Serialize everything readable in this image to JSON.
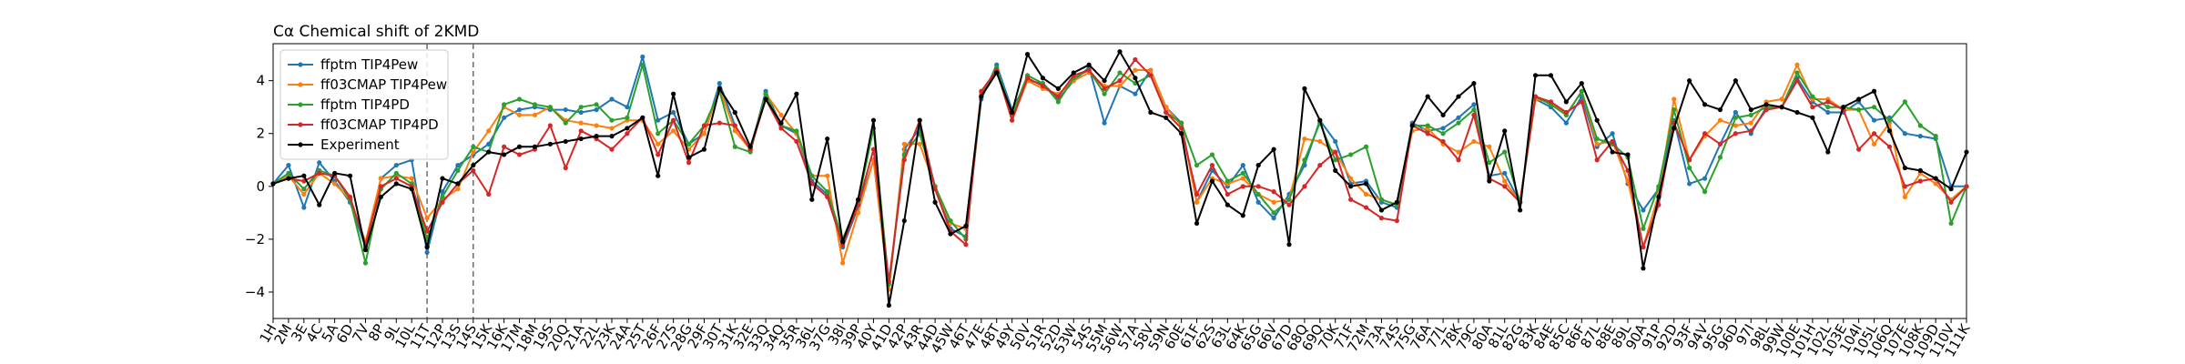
{
  "chart_data": {
    "type": "line",
    "title": "Cα Chemical shift of 2KMD",
    "xlabel": "",
    "ylabel": "",
    "ylim": [
      -5.0,
      5.4
    ],
    "yticks": [
      -4,
      -2,
      0,
      2,
      4
    ],
    "grid": false,
    "legend_position": "top-left",
    "categories": [
      "1H",
      "2M",
      "3E",
      "4C",
      "5A",
      "6D",
      "7V",
      "8P",
      "9L",
      "10L",
      "11T",
      "12P",
      "13S",
      "14S",
      "15K",
      "16K",
      "17M",
      "18M",
      "19S",
      "20Q",
      "21A",
      "22L",
      "23K",
      "24A",
      "25T",
      "26F",
      "27S",
      "28G",
      "29F",
      "30T",
      "31K",
      "32E",
      "33Q",
      "34Q",
      "35R",
      "36L",
      "37G",
      "38I",
      "39P",
      "40Y",
      "41D",
      "42P",
      "43R",
      "44D",
      "45W",
      "46T",
      "47E",
      "48T",
      "49Y",
      "50V",
      "51R",
      "52D",
      "53W",
      "54S",
      "55M",
      "56W",
      "57A",
      "58V",
      "59N",
      "60E",
      "61F",
      "62S",
      "63L",
      "64K",
      "65G",
      "66V",
      "67D",
      "68Q",
      "69Q",
      "70K",
      "71F",
      "72M",
      "73A",
      "74S",
      "75G",
      "76A",
      "77L",
      "78K",
      "79C",
      "80A",
      "81L",
      "82G",
      "83K",
      "84E",
      "85C",
      "86F",
      "87L",
      "88E",
      "89L",
      "90A",
      "91P",
      "92D",
      "93F",
      "94V",
      "95G",
      "96D",
      "97I",
      "98L",
      "99W",
      "100E",
      "101H",
      "102L",
      "103E",
      "104I",
      "105L",
      "106Q",
      "107E",
      "108K",
      "109D",
      "110V",
      "111K"
    ],
    "vlines": [
      "11T",
      "14S"
    ],
    "series": [
      {
        "name": "ffptm TIP4Pew",
        "color": "#1f77b4",
        "values": [
          0.1,
          0.8,
          -0.8,
          0.9,
          0.2,
          -0.6,
          -2.3,
          0.3,
          0.8,
          1.0,
          -2.5,
          -0.2,
          0.8,
          1.2,
          1.6,
          2.6,
          2.9,
          3.0,
          2.9,
          2.9,
          2.8,
          2.9,
          3.3,
          3.0,
          4.9,
          2.5,
          2.8,
          1.6,
          2.0,
          3.9,
          2.3,
          1.4,
          3.6,
          2.3,
          2.0,
          0.2,
          -0.3,
          -2.3,
          -0.8,
          1.0,
          -3.9,
          1.4,
          2.2,
          0.0,
          -1.6,
          -1.9,
          3.3,
          4.6,
          2.9,
          4.0,
          3.9,
          3.3,
          4.0,
          4.5,
          2.4,
          3.8,
          3.5,
          4.4,
          3.0,
          2.4,
          -0.6,
          0.6,
          0.0,
          0.8,
          -0.6,
          -1.2,
          -0.3,
          0.8,
          2.5,
          1.7,
          0.1,
          0.2,
          -0.6,
          -0.8,
          2.4,
          2.1,
          2.2,
          2.6,
          3.1,
          0.4,
          0.5,
          -0.6,
          3.3,
          3.0,
          2.4,
          3.4,
          1.5,
          2.0,
          0.1,
          -0.9,
          -0.1,
          2.5,
          0.1,
          0.3,
          1.6,
          2.8,
          2.0,
          3.0,
          3.0,
          4.1,
          3.2,
          2.8,
          2.8,
          3.2,
          2.5,
          2.6,
          2.0,
          1.9,
          1.8,
          0.0,
          0.0
        ]
      },
      {
        "name": "ff03CMAP TIP4Pew",
        "color": "#ff7f0e",
        "values": [
          0.1,
          0.4,
          -0.3,
          0.5,
          0.1,
          -0.5,
          -2.1,
          0.3,
          0.4,
          0.3,
          -1.2,
          -0.5,
          -0.1,
          1.3,
          2.1,
          3.0,
          2.7,
          2.7,
          3.0,
          2.5,
          2.4,
          2.3,
          2.2,
          2.5,
          2.5,
          1.6,
          2.1,
          1.4,
          2.0,
          3.7,
          2.1,
          1.4,
          3.5,
          2.7,
          2.0,
          0.4,
          0.4,
          -2.9,
          -1.0,
          1.0,
          -3.9,
          1.6,
          1.6,
          0.0,
          -1.4,
          -1.6,
          3.5,
          4.4,
          2.5,
          4.0,
          3.7,
          3.5,
          4.0,
          4.3,
          3.8,
          3.8,
          4.4,
          4.4,
          3.0,
          2.3,
          -0.6,
          0.3,
          0.1,
          0.3,
          -0.3,
          -0.6,
          -0.5,
          1.8,
          1.7,
          1.3,
          0.3,
          -0.3,
          -0.5,
          -0.7,
          2.1,
          2.2,
          1.6,
          1.3,
          1.7,
          1.5,
          0.2,
          -0.6,
          3.3,
          3.2,
          2.7,
          3.6,
          1.6,
          1.7,
          0.2,
          -2.3,
          -0.3,
          3.3,
          1.0,
          1.9,
          2.5,
          2.3,
          2.4,
          3.2,
          3.3,
          4.6,
          3.3,
          3.3,
          2.9,
          2.9,
          1.6,
          2.4,
          -0.4,
          0.5,
          0.1,
          -0.5,
          0.0
        ]
      },
      {
        "name": "ffptm TIP4PD",
        "color": "#2ca02c",
        "values": [
          0.1,
          0.5,
          -0.1,
          0.6,
          0.4,
          -0.5,
          -2.9,
          -0.1,
          0.5,
          0.1,
          -2.0,
          -0.4,
          0.6,
          1.5,
          1.3,
          3.1,
          3.3,
          3.1,
          3.0,
          2.4,
          3.0,
          3.1,
          2.5,
          2.6,
          4.6,
          2.0,
          2.5,
          1.6,
          2.3,
          3.6,
          1.5,
          1.3,
          3.5,
          2.3,
          2.1,
          0.4,
          -0.2,
          -2.0,
          -0.6,
          2.2,
          -3.7,
          1.2,
          2.0,
          0.0,
          -1.3,
          -2.0,
          3.4,
          4.5,
          2.7,
          4.2,
          3.9,
          3.2,
          4.1,
          4.4,
          3.5,
          4.3,
          3.9,
          4.2,
          2.8,
          2.4,
          0.8,
          1.2,
          0.2,
          0.5,
          -0.3,
          -1.0,
          -0.5,
          1.0,
          2.4,
          1.0,
          1.2,
          1.5,
          -0.5,
          -0.7,
          2.3,
          2.3,
          2.0,
          2.4,
          2.9,
          0.9,
          1.3,
          -0.6,
          3.4,
          3.1,
          2.7,
          3.6,
          1.8,
          1.6,
          1.1,
          -1.6,
          0.0,
          2.9,
          0.7,
          -0.2,
          1.1,
          2.6,
          2.7,
          3.0,
          3.0,
          4.3,
          3.4,
          3.0,
          3.0,
          2.9,
          3.0,
          2.5,
          3.2,
          2.3,
          1.9,
          -1.4,
          0.0
        ]
      },
      {
        "name": "ff03CMAP TIP4PD",
        "color": "#d62728",
        "values": [
          0.1,
          0.3,
          0.2,
          0.5,
          0.4,
          -0.4,
          -2.2,
          0.0,
          0.3,
          0.0,
          -1.7,
          -0.6,
          0.1,
          0.6,
          -0.3,
          1.5,
          1.2,
          1.4,
          2.3,
          0.7,
          2.1,
          1.8,
          1.4,
          2.0,
          2.6,
          1.2,
          2.5,
          0.9,
          2.3,
          2.4,
          2.3,
          1.4,
          3.3,
          2.2,
          1.7,
          0.1,
          -0.4,
          -2.2,
          -0.7,
          1.4,
          -3.6,
          1.0,
          2.5,
          -0.1,
          -1.7,
          -2.2,
          3.6,
          4.4,
          2.5,
          4.1,
          3.8,
          3.4,
          4.2,
          4.4,
          3.7,
          4.0,
          4.8,
          4.2,
          2.8,
          2.2,
          -0.3,
          0.8,
          -0.3,
          0.0,
          0.0,
          -0.2,
          -0.7,
          0.0,
          0.8,
          1.3,
          -0.5,
          -0.8,
          -1.2,
          -1.3,
          2.3,
          2.0,
          1.7,
          1.0,
          2.7,
          0.3,
          0.0,
          -0.6,
          3.4,
          3.2,
          2.8,
          3.2,
          1.0,
          1.7,
          0.6,
          -2.3,
          -0.7,
          2.4,
          1.0,
          2.0,
          1.6,
          2.0,
          2.1,
          2.9,
          3.0,
          4.0,
          3.0,
          3.2,
          2.9,
          1.4,
          2.0,
          1.5,
          0.0,
          0.2,
          0.3,
          -0.6,
          0.0
        ]
      },
      {
        "name": "Experiment",
        "color": "#000000",
        "values": [
          0.1,
          0.3,
          0.4,
          -0.7,
          0.5,
          0.4,
          -2.4,
          -0.4,
          0.1,
          -0.1,
          -2.3,
          0.3,
          0.1,
          0.8,
          1.3,
          1.2,
          1.5,
          1.5,
          1.6,
          1.7,
          1.8,
          1.9,
          1.9,
          2.2,
          2.6,
          0.4,
          3.5,
          1.1,
          1.4,
          3.7,
          2.8,
          1.5,
          3.3,
          2.4,
          3.5,
          -0.5,
          1.8,
          -2.1,
          -0.5,
          2.5,
          -4.5,
          -1.3,
          2.5,
          -0.6,
          -1.8,
          -1.5,
          3.4,
          4.3,
          2.8,
          5.0,
          4.1,
          3.7,
          4.3,
          4.6,
          4.0,
          5.1,
          4.1,
          2.8,
          2.6,
          2.0,
          -1.4,
          0.2,
          -0.7,
          -1.1,
          0.8,
          1.4,
          -2.2,
          3.7,
          2.5,
          0.6,
          0.0,
          0.1,
          -0.9,
          -0.6,
          2.3,
          3.4,
          2.7,
          3.4,
          3.9,
          0.2,
          2.1,
          -0.9,
          4.2,
          4.2,
          3.2,
          3.9,
          2.5,
          1.3,
          1.2,
          -3.1,
          -0.4,
          2.2,
          4.0,
          3.1,
          2.9,
          4.0,
          2.9,
          3.1,
          3.0,
          2.8,
          2.6,
          1.3,
          3.0,
          3.3,
          3.6,
          2.1,
          0.7,
          0.6,
          0.3,
          -0.1,
          1.3
        ]
      }
    ]
  }
}
